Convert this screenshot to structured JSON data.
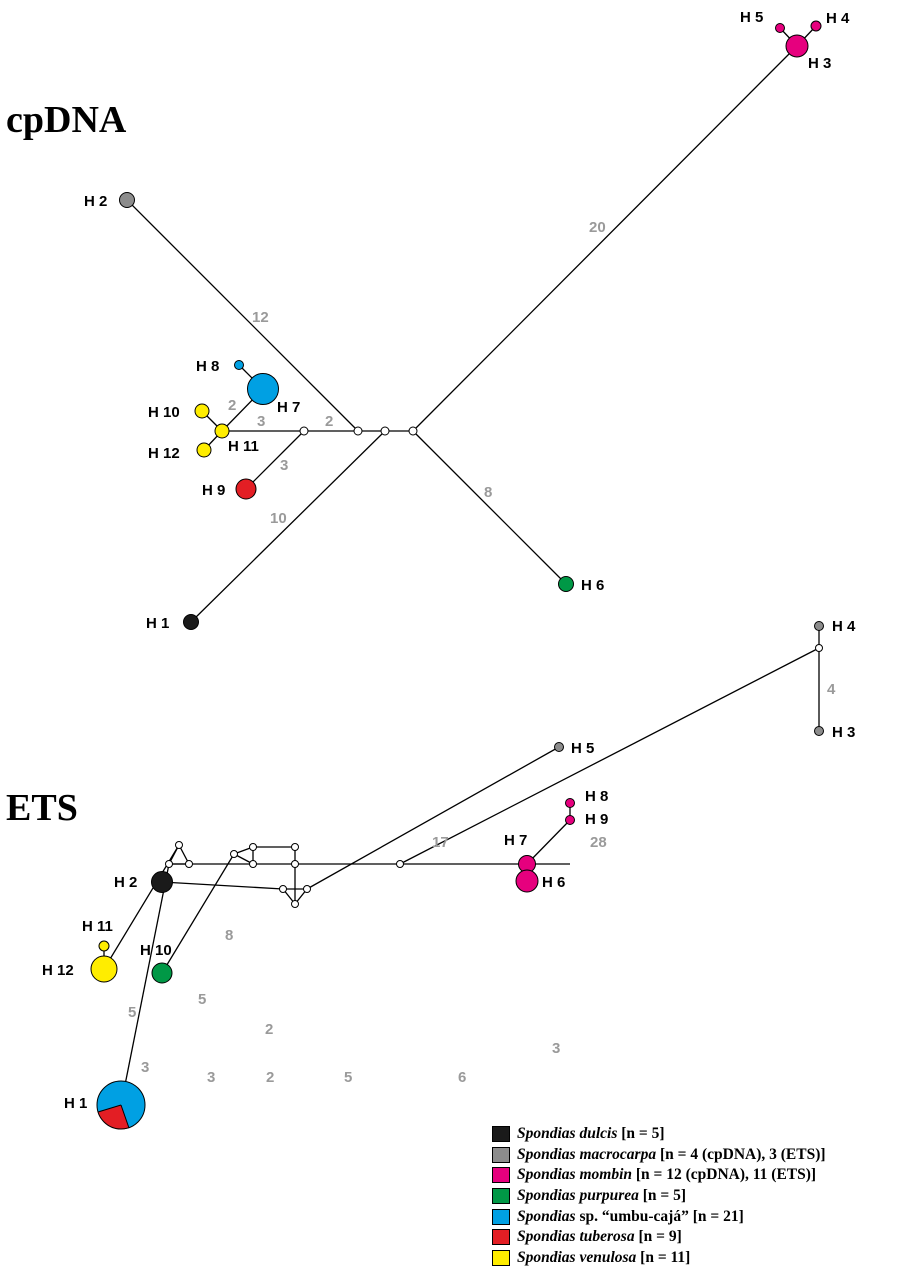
{
  "panels": {
    "cpdna": {
      "title": "cpDNA",
      "haplotypes": [
        {
          "label": "H 1",
          "species": [
            "dulcis"
          ]
        },
        {
          "label": "H 2",
          "species": [
            "macrocarpa"
          ]
        },
        {
          "label": "H 3",
          "species": [
            "mombin"
          ]
        },
        {
          "label": "H 4",
          "species": [
            "mombin"
          ]
        },
        {
          "label": "H 5",
          "species": [
            "mombin"
          ]
        },
        {
          "label": "H 6",
          "species": [
            "purpurea"
          ]
        },
        {
          "label": "H 7",
          "species": [
            "umbu_caja"
          ]
        },
        {
          "label": "H 8",
          "species": [
            "umbu_caja"
          ]
        },
        {
          "label": "H 9",
          "species": [
            "tuberosa"
          ]
        },
        {
          "label": "H 10",
          "species": [
            "venulosa"
          ]
        },
        {
          "label": "H 11",
          "species": [
            "venulosa"
          ]
        },
        {
          "label": "H 12",
          "species": [
            "venulosa"
          ]
        }
      ],
      "step_labels": [
        "20",
        "12",
        "2",
        "3",
        "2",
        "3",
        "10",
        "8"
      ]
    },
    "ets": {
      "title": "ETS",
      "haplotypes": [
        {
          "label": "H 1",
          "species": [
            "umbu_caja",
            "tuberosa"
          ]
        },
        {
          "label": "H 2",
          "species": [
            "dulcis"
          ]
        },
        {
          "label": "H 3",
          "species": [
            "macrocarpa"
          ]
        },
        {
          "label": "H 4",
          "species": [
            "macrocarpa"
          ]
        },
        {
          "label": "H 5",
          "species": [
            "macrocarpa"
          ]
        },
        {
          "label": "H 6",
          "species": [
            "mombin"
          ]
        },
        {
          "label": "H 7",
          "species": [
            "mombin"
          ]
        },
        {
          "label": "H 8",
          "species": [
            "mombin"
          ]
        },
        {
          "label": "H 9",
          "species": [
            "mombin"
          ]
        },
        {
          "label": "H 10",
          "species": [
            "purpurea"
          ]
        },
        {
          "label": "H 11",
          "species": [
            "venulosa"
          ]
        },
        {
          "label": "H 12",
          "species": [
            "venulosa"
          ]
        }
      ],
      "step_labels": [
        "4",
        "17",
        "28",
        "8",
        "5",
        "5",
        "3",
        "2",
        "3",
        "2",
        "5",
        "6",
        "3"
      ]
    }
  },
  "legend": {
    "items": [
      {
        "key": "dulcis",
        "color": "#1a1a1a",
        "name": "Spondias dulcis",
        "info": " [n = 5]"
      },
      {
        "key": "macrocarpa",
        "color": "#8c8c8c",
        "name": "Spondias macrocarpa",
        "info": " [n = 4 (cpDNA), 3 (ETS)]"
      },
      {
        "key": "mombin",
        "color": "#e6007e",
        "name": "Spondias mombin",
        "info": " [n = 12 (cpDNA), 11 (ETS)]"
      },
      {
        "key": "purpurea",
        "color": "#009846",
        "name": "Spondias purpurea",
        "info": " [n = 5]"
      },
      {
        "key": "umbu_caja",
        "color": "#00a0e3",
        "name": "Spondias",
        "info": " sp. “umbu-cajá” [n = 21]"
      },
      {
        "key": "tuberosa",
        "color": "#e31e24",
        "name": "Spondias tuberosa",
        "info": " [n = 9]"
      },
      {
        "key": "venulosa",
        "color": "#ffed00",
        "name": "Spondias venulosa",
        "info": " [n = 11]"
      }
    ]
  }
}
